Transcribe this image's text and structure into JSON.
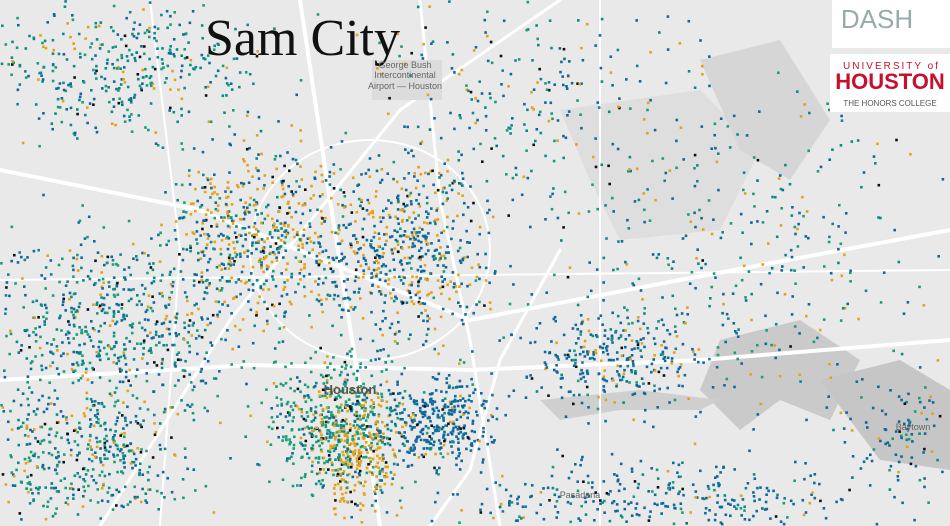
{
  "title": "Sam City",
  "places": {
    "airport": [
      "George Bush",
      "Intercontinental",
      "Airport — Houston"
    ],
    "city": "Houston",
    "baytown": "Baytown",
    "pasadena": "Pasadena"
  },
  "logos": {
    "dash": "DASH",
    "university": "UNIVERSITY of",
    "houston": "HOUSTON",
    "college": "THE HONORS COLLEGE"
  }
}
